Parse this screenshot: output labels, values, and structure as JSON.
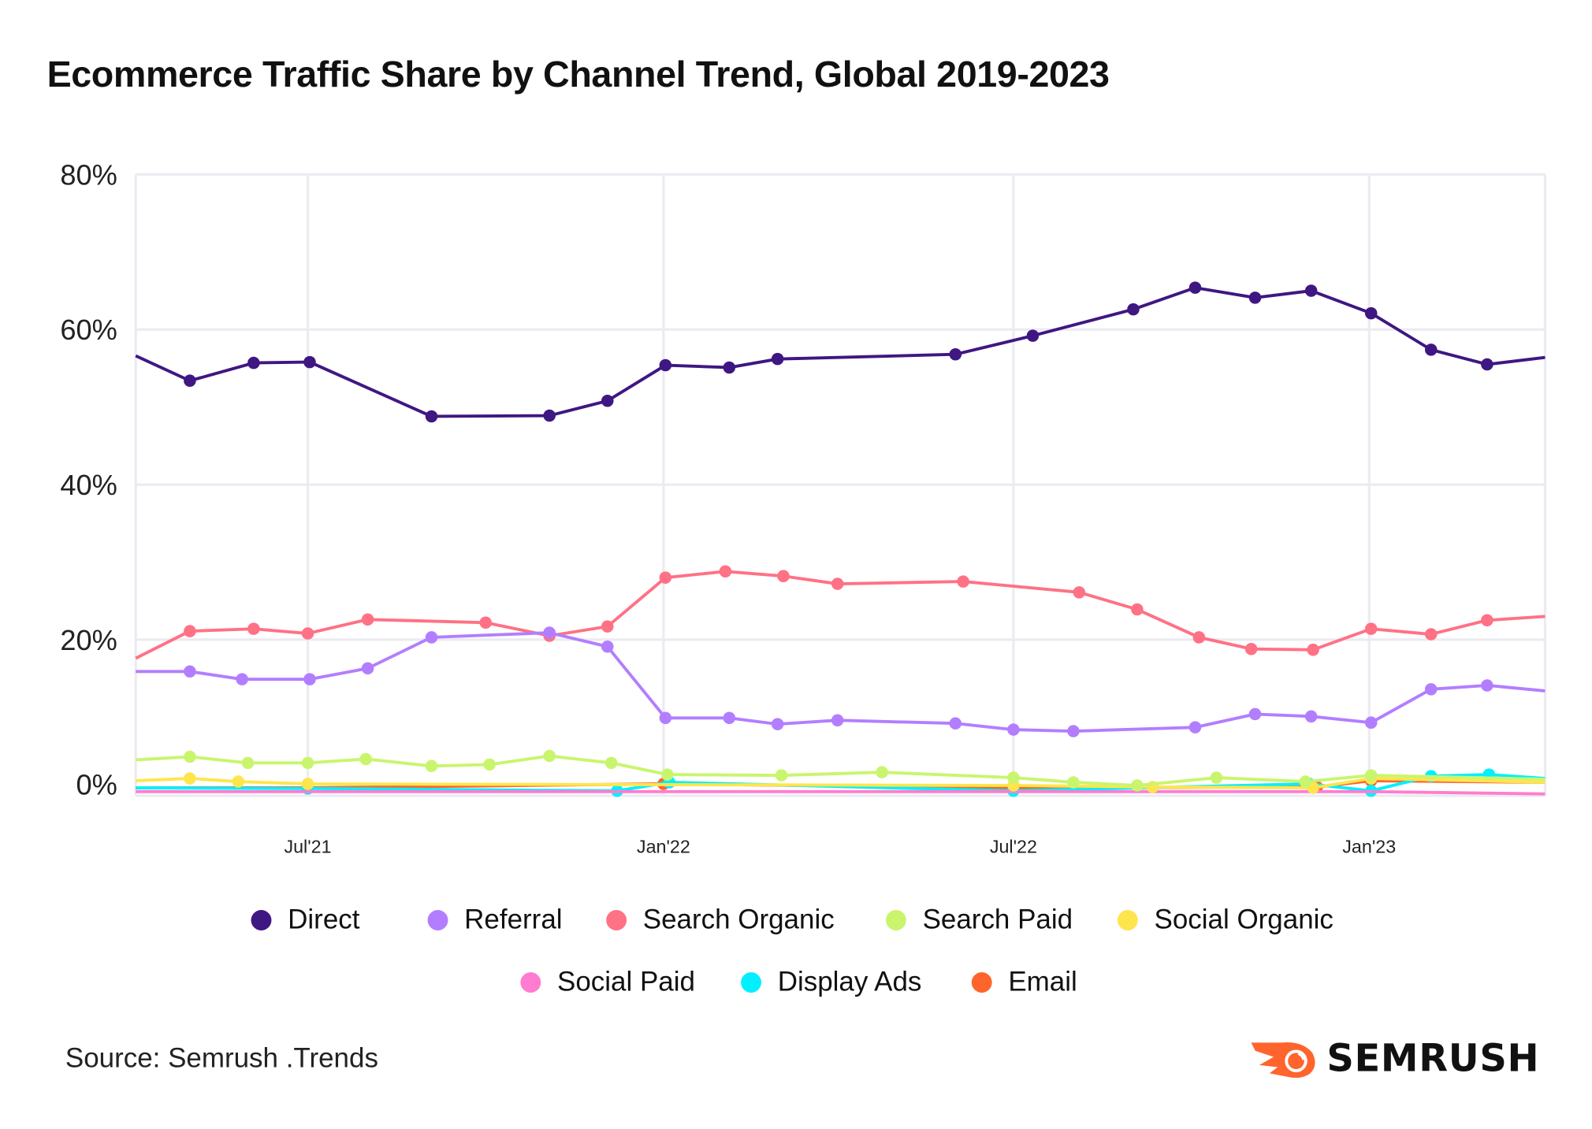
{
  "chart_data": {
    "type": "line",
    "title": "Ecommerce Traffic Share by Channel Trend, Global 2019-2023",
    "xlabel": "",
    "ylabel": "",
    "ylim": [
      0,
      80
    ],
    "xlim": [
      "2021-04-03",
      "2023-04-02"
    ],
    "grid": true,
    "legend_placement": "bottom",
    "y_ticks": [
      {
        "value": 0,
        "label": "0%"
      },
      {
        "value": 20,
        "label": "20%"
      },
      {
        "value": 40,
        "label": "40%"
      },
      {
        "value": 60,
        "label": "60%"
      },
      {
        "value": 80,
        "label": "80%"
      }
    ],
    "x_ticks": [
      {
        "date": "2021-07-01",
        "label": "Jul'21"
      },
      {
        "date": "2022-01-01",
        "label": "Jan'22"
      },
      {
        "date": "2022-07-01",
        "label": "Jul'22"
      },
      {
        "date": "2023-01-01",
        "label": "Jan'23"
      }
    ],
    "series": [
      {
        "name": "Direct",
        "color": "#3F1782",
        "points": [
          [
            "2021-04-03",
            56.6
          ],
          [
            "2021-05-01",
            53.4
          ],
          [
            "2021-06-03",
            55.7
          ],
          [
            "2021-07-02",
            55.8
          ],
          [
            "2021-09-03",
            48.8
          ],
          [
            "2021-11-03",
            48.9
          ],
          [
            "2021-12-03",
            50.8
          ],
          [
            "2022-01-02",
            55.4
          ],
          [
            "2022-02-04",
            55.1
          ],
          [
            "2022-03-01",
            56.2
          ],
          [
            "2022-06-01",
            56.8
          ],
          [
            "2022-07-11",
            59.2
          ],
          [
            "2022-09-01",
            62.6
          ],
          [
            "2022-10-03",
            65.4
          ],
          [
            "2022-11-03",
            64.1
          ],
          [
            "2022-12-02",
            65.0
          ],
          [
            "2023-01-02",
            62.1
          ],
          [
            "2023-02-02",
            57.4
          ],
          [
            "2023-03-03",
            55.5
          ],
          [
            "2023-04-02",
            56.4
          ]
        ]
      },
      {
        "name": "Referral",
        "color": "#B27EFF",
        "points": [
          [
            "2021-04-03",
            15.9
          ],
          [
            "2021-05-01",
            15.9
          ],
          [
            "2021-05-28",
            14.9
          ],
          [
            "2021-07-02",
            14.9
          ],
          [
            "2021-08-01",
            16.3
          ],
          [
            "2021-09-03",
            20.3
          ],
          [
            "2021-11-03",
            20.9
          ],
          [
            "2021-12-03",
            19.1
          ],
          [
            "2022-01-02",
            9.9
          ],
          [
            "2022-02-04",
            9.9
          ],
          [
            "2022-03-01",
            9.1
          ],
          [
            "2022-04-01",
            9.6
          ],
          [
            "2022-06-01",
            9.2
          ],
          [
            "2022-07-01",
            8.4
          ],
          [
            "2022-08-01",
            8.2
          ],
          [
            "2022-10-03",
            8.7
          ],
          [
            "2022-11-03",
            10.4
          ],
          [
            "2022-12-02",
            10.1
          ],
          [
            "2023-01-02",
            9.3
          ],
          [
            "2023-02-02",
            13.6
          ],
          [
            "2023-03-03",
            14.1
          ],
          [
            "2023-04-02",
            13.4
          ]
        ]
      },
      {
        "name": "Search Organic",
        "color": "#FF7185",
        "points": [
          [
            "2021-04-03",
            17.6
          ],
          [
            "2021-05-01",
            21.1
          ],
          [
            "2021-06-03",
            21.4
          ],
          [
            "2021-07-01",
            20.8
          ],
          [
            "2021-08-01",
            22.6
          ],
          [
            "2021-10-01",
            22.2
          ],
          [
            "2021-11-03",
            20.5
          ],
          [
            "2021-12-03",
            21.7
          ],
          [
            "2022-01-02",
            28.0
          ],
          [
            "2022-02-02",
            28.8
          ],
          [
            "2022-03-04",
            28.2
          ],
          [
            "2022-04-01",
            27.2
          ],
          [
            "2022-06-05",
            27.5
          ],
          [
            "2022-08-04",
            26.1
          ],
          [
            "2022-09-03",
            23.9
          ],
          [
            "2022-10-05",
            20.3
          ],
          [
            "2022-11-01",
            18.8
          ],
          [
            "2022-12-03",
            18.7
          ],
          [
            "2023-01-02",
            21.4
          ],
          [
            "2023-02-02",
            20.7
          ],
          [
            "2023-03-03",
            22.5
          ],
          [
            "2023-04-02",
            23.0
          ]
        ]
      },
      {
        "name": "Search Paid",
        "color": "#C9F56E",
        "points": [
          [
            "2021-04-03",
            4.5
          ],
          [
            "2021-05-01",
            4.9
          ],
          [
            "2021-05-31",
            4.1
          ],
          [
            "2021-07-01",
            4.1
          ],
          [
            "2021-07-31",
            4.6
          ],
          [
            "2021-09-03",
            3.7
          ],
          [
            "2021-10-03",
            3.9
          ],
          [
            "2021-11-03",
            5.0
          ],
          [
            "2021-12-05",
            4.1
          ],
          [
            "2022-01-03",
            2.6
          ],
          [
            "2022-03-03",
            2.5
          ],
          [
            "2022-04-24",
            2.9
          ],
          [
            "2022-07-01",
            2.2
          ],
          [
            "2022-08-01",
            1.6
          ],
          [
            "2022-09-03",
            1.2
          ],
          [
            "2022-10-14",
            2.2
          ],
          [
            "2022-11-29",
            1.7
          ],
          [
            "2023-01-02",
            2.5
          ],
          [
            "2023-04-02",
            2.0
          ]
        ]
      },
      {
        "name": "Social Organic",
        "color": "#FFE54D",
        "points": [
          [
            "2021-04-03",
            1.8
          ],
          [
            "2021-05-01",
            2.1
          ],
          [
            "2021-05-26",
            1.7
          ],
          [
            "2021-07-01",
            1.4
          ],
          [
            "2022-07-01",
            1.2
          ],
          [
            "2022-09-11",
            1.0
          ],
          [
            "2022-12-03",
            0.9
          ],
          [
            "2023-01-02",
            2.1
          ],
          [
            "2023-04-02",
            1.6
          ]
        ]
      },
      {
        "name": "Social Paid",
        "color": "#FF7DD0",
        "points": [
          [
            "2021-04-03",
            0.4
          ],
          [
            "2022-07-01",
            0.4
          ],
          [
            "2023-01-02",
            0.4
          ],
          [
            "2023-04-02",
            0.1
          ]
        ]
      },
      {
        "name": "Display Ads",
        "color": "#00F0FF",
        "points": [
          [
            "2021-04-03",
            0.9
          ],
          [
            "2021-07-01",
            0.8
          ],
          [
            "2021-12-08",
            0.5
          ],
          [
            "2022-01-04",
            1.6
          ],
          [
            "2022-07-01",
            0.5
          ],
          [
            "2022-12-01",
            1.4
          ],
          [
            "2023-01-02",
            0.5
          ],
          [
            "2023-02-02",
            2.4
          ],
          [
            "2023-03-04",
            2.6
          ],
          [
            "2023-04-02",
            2.1
          ]
        ]
      },
      {
        "name": "Email",
        "color": "#FF642D",
        "points": [
          [
            "2021-04-03",
            0.9
          ],
          [
            "2021-07-01",
            0.9
          ],
          [
            "2022-01-01",
            1.4
          ],
          [
            "2022-07-01",
            0.9
          ],
          [
            "2022-12-05",
            1.0
          ],
          [
            "2023-01-02",
            1.8
          ],
          [
            "2023-04-02",
            1.6
          ]
        ]
      }
    ]
  },
  "footer": {
    "source": "Source: Semrush .Trends",
    "logo_text": "SEMRUSH"
  }
}
